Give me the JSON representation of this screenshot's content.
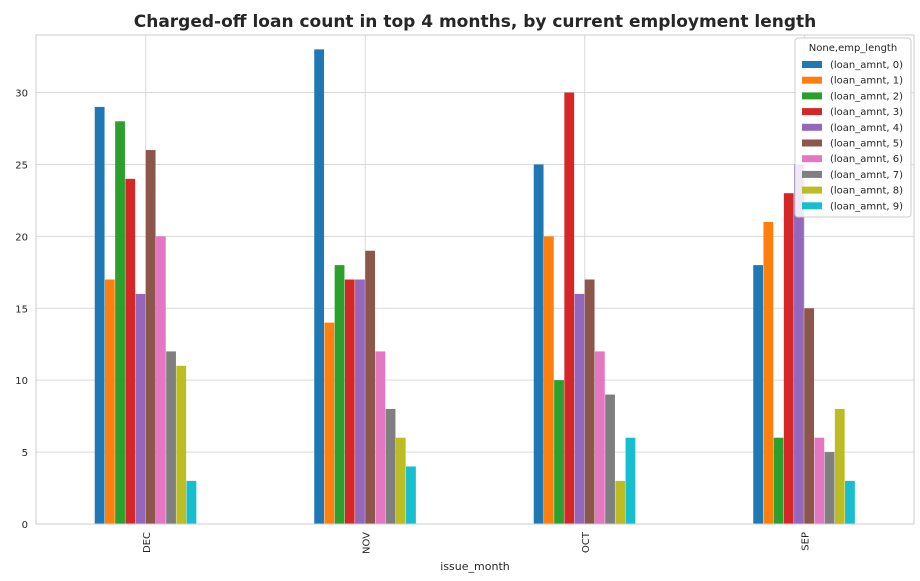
{
  "chart_data": {
    "type": "bar",
    "title": "Charged-off loan count in top 4 months, by current employment length",
    "xlabel": "issue_month",
    "ylabel": "",
    "categories": [
      "DEC",
      "NOV",
      "OCT",
      "SEP"
    ],
    "ylim": [
      0,
      34
    ],
    "yticks": [
      0,
      5,
      10,
      15,
      20,
      25,
      30
    ],
    "grid": true,
    "legend": {
      "title": "None,emp_length",
      "placement": "top-right"
    },
    "series": [
      {
        "name": "(loan_amnt, 0)",
        "color": "#1f77b4",
        "values": [
          29,
          33,
          25,
          18
        ]
      },
      {
        "name": "(loan_amnt, 1)",
        "color": "#ff7f0e",
        "values": [
          17,
          14,
          20,
          21
        ]
      },
      {
        "name": "(loan_amnt, 2)",
        "color": "#2ca02c",
        "values": [
          28,
          18,
          10,
          6
        ]
      },
      {
        "name": "(loan_amnt, 3)",
        "color": "#d62728",
        "values": [
          24,
          17,
          30,
          23
        ]
      },
      {
        "name": "(loan_amnt, 4)",
        "color": "#9467bd",
        "values": [
          16,
          17,
          16,
          25
        ]
      },
      {
        "name": "(loan_amnt, 5)",
        "color": "#8c564b",
        "values": [
          26,
          19,
          17,
          15
        ]
      },
      {
        "name": "(loan_amnt, 6)",
        "color": "#e377c2",
        "values": [
          20,
          12,
          12,
          6
        ]
      },
      {
        "name": "(loan_amnt, 7)",
        "color": "#7f7f7f",
        "values": [
          12,
          8,
          9,
          5
        ]
      },
      {
        "name": "(loan_amnt, 8)",
        "color": "#bcbd22",
        "values": [
          11,
          6,
          3,
          8
        ]
      },
      {
        "name": "(loan_amnt, 9)",
        "color": "#17becf",
        "values": [
          3,
          4,
          6,
          3
        ]
      }
    ]
  }
}
